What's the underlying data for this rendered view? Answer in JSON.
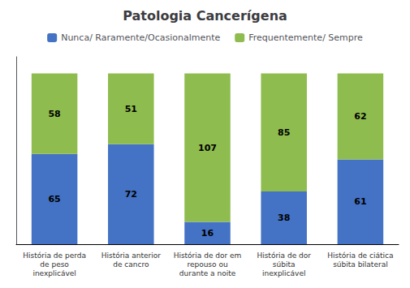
{
  "chart_data": {
    "type": "bar",
    "title": "Patologia Cancerígena",
    "categories": [
      "História de perda\nde peso\ninexplicável",
      "História anterior\nde cancro",
      "História de dor em\nrepouso ou\ndurante a noite",
      "História de dor\nsúbita\ninexplicável",
      "História de ciática\nsúbita bilateral"
    ],
    "series": [
      {
        "name": "Nunca/ Raramente/Ocasionalmente",
        "color": "#4472C4",
        "values": [
          65,
          72,
          16,
          38,
          61
        ]
      },
      {
        "name": "Frequentemente/ Sempre",
        "color": "#8FBC4E",
        "values": [
          58,
          51,
          107,
          85,
          62
        ]
      }
    ],
    "ylim": [
      0,
      135
    ],
    "stacked": true,
    "data_labels": true,
    "tick_labels": "x",
    "grid": false,
    "legend": "top"
  }
}
